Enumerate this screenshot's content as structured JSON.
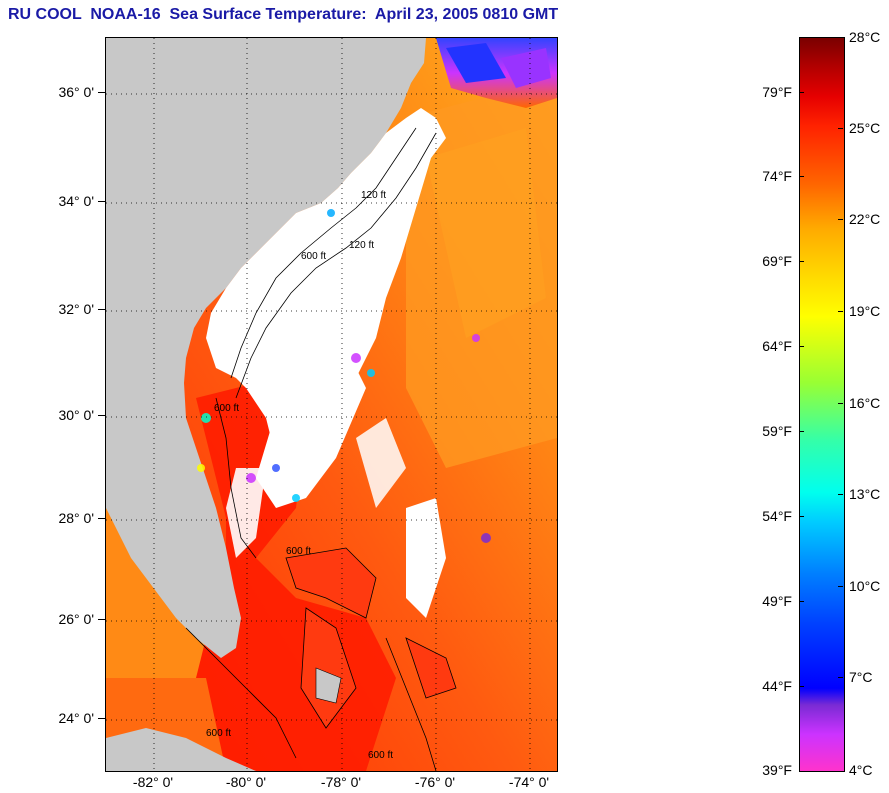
{
  "title": "RU COOL  NOAA-16  Sea Surface Temperature:  April 23, 2005 0810 GMT",
  "map": {
    "lat_labels": [
      "36° 0'",
      "34° 0'",
      "32° 0'",
      "30° 0'",
      "28° 0'",
      "26° 0'",
      "24° 0'"
    ],
    "lon_labels": [
      "-82° 0'",
      "-80° 0'",
      "-78° 0'",
      "-76° 0'",
      "-74° 0'"
    ],
    "isobath_labels": [
      "120 ft",
      "600 ft",
      "120 ft",
      "600 ft",
      "600 ft",
      "600 ft",
      "600 ft"
    ],
    "colors": {
      "land": "#c8c8c8",
      "cloud": "#ffffff",
      "gulf_stream": "#ff2200",
      "offshore": "#ff6a10"
    }
  },
  "colorbar": {
    "celsius": [
      "28°C",
      "25°C",
      "22°C",
      "19°C",
      "16°C",
      "13°C",
      "10°C",
      "7°C",
      "4°C"
    ],
    "fahrenheit": [
      "79°F",
      "74°F",
      "69°F",
      "64°F",
      "59°F",
      "54°F",
      "49°F",
      "44°F",
      "39°F"
    ]
  }
}
